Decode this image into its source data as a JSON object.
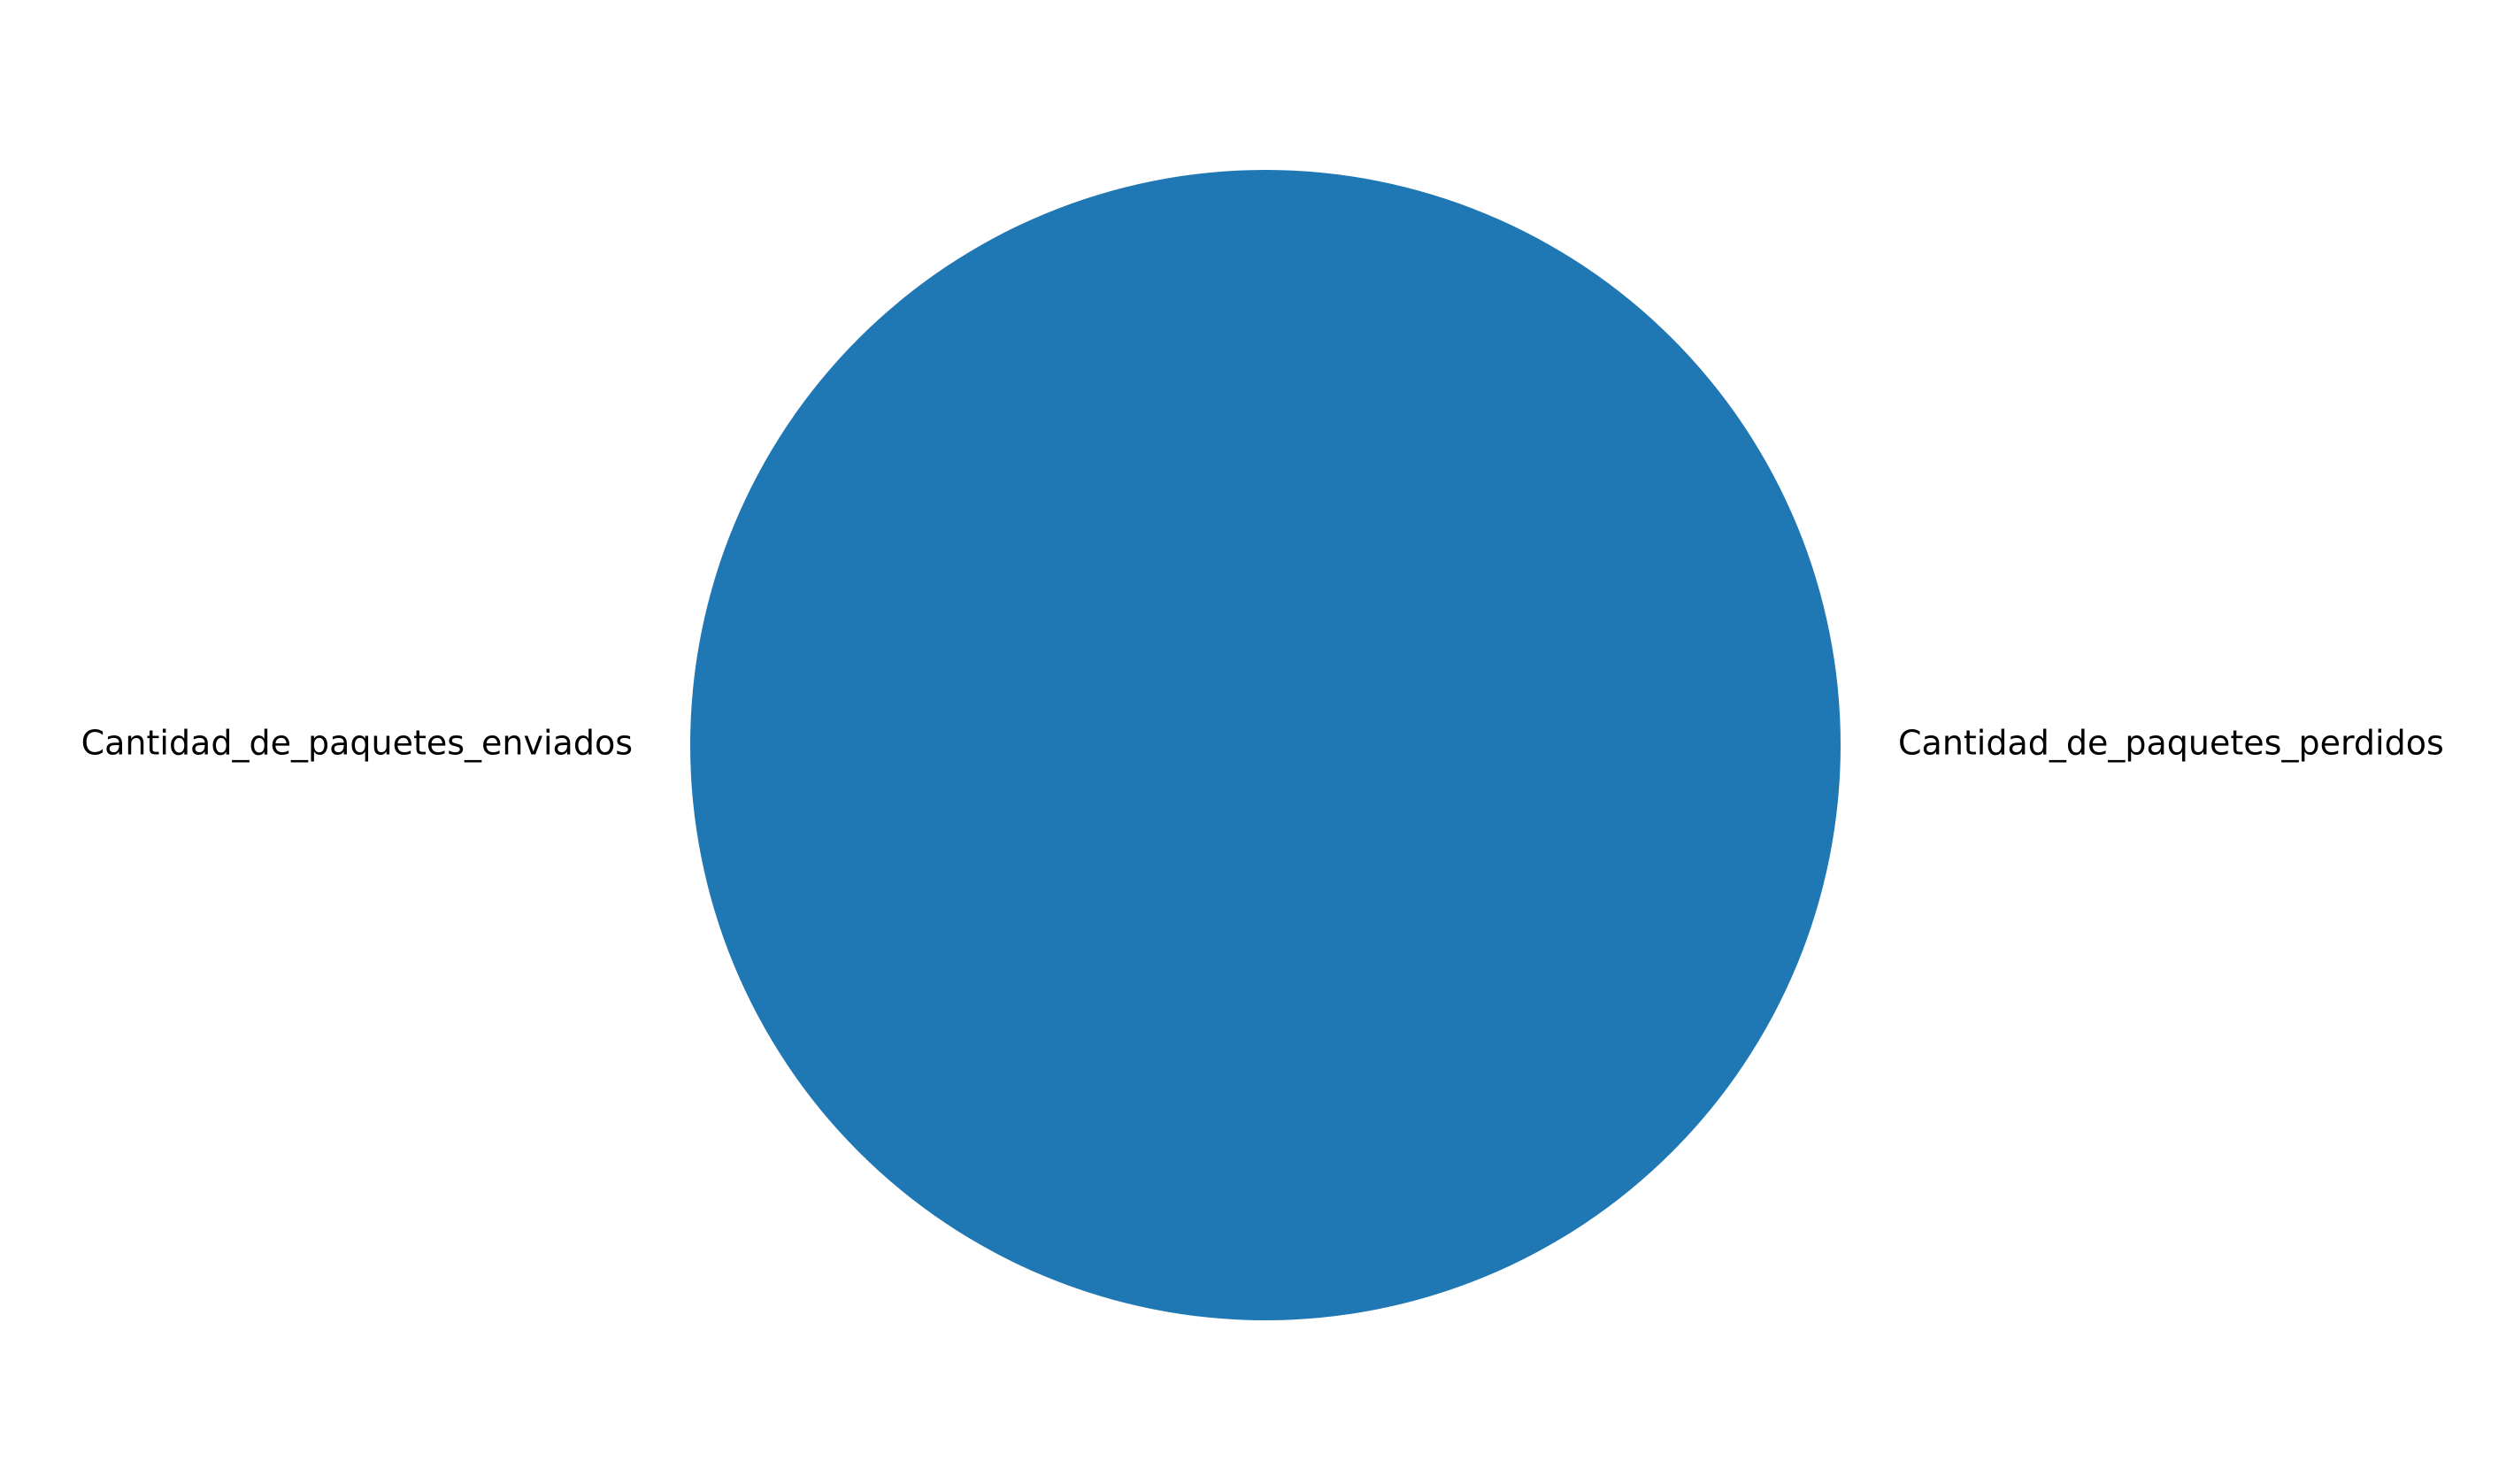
{
  "chart_data": {
    "type": "pie",
    "title": "",
    "slices": [
      {
        "label": "Cantidad_de_paquetes_enviados",
        "value": 100,
        "color": "#1f77b4"
      },
      {
        "label": "Cantidad_de_paquetes_perdidos",
        "value": 0,
        "color": "#ff7f0e"
      }
    ],
    "start_angle": 0,
    "direction": "counterclockwise"
  }
}
